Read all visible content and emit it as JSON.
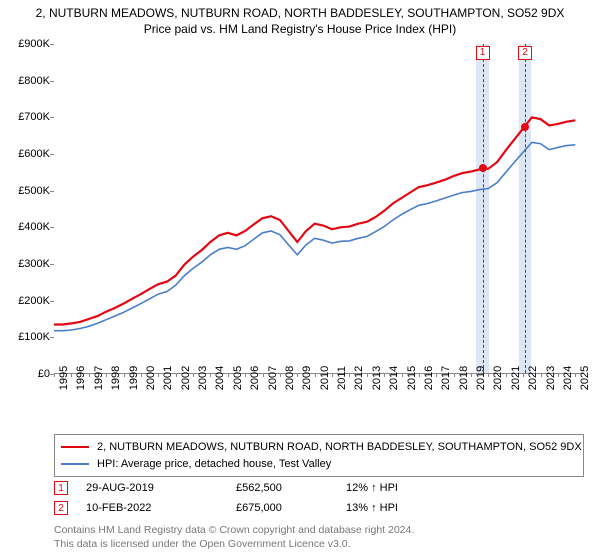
{
  "title": "2, NUTBURN MEADOWS, NUTBURN ROAD, NORTH BADDESLEY, SOUTHAMPTON, SO52 9DX",
  "subtitle": "Price paid vs. HM Land Registry's House Price Index (HPI)",
  "chart": {
    "type": "line",
    "background_color": "#ffffff",
    "ylim": [
      0,
      900000
    ],
    "ytick_step": 100000,
    "ytick_labels": [
      "£0",
      "£100K",
      "£200K",
      "£300K",
      "£400K",
      "£500K",
      "£600K",
      "£700K",
      "£800K",
      "£900K"
    ],
    "xlim": [
      1995,
      2025.5
    ],
    "xticks": [
      1995,
      1996,
      1997,
      1998,
      1999,
      2000,
      2001,
      2002,
      2003,
      2004,
      2005,
      2006,
      2007,
      2008,
      2009,
      2010,
      2011,
      2012,
      2013,
      2014,
      2015,
      2016,
      2017,
      2018,
      2019,
      2020,
      2021,
      2022,
      2023,
      2024,
      2025
    ],
    "title_fontsize": 12,
    "label_fontsize": 11,
    "series": [
      {
        "name": "house_price_series",
        "label": "2, NUTBURN MEADOWS, NUTBURN ROAD, NORTH BADDESLEY, SOUTHAMPTON, SO52 9DX",
        "color": "#e30613",
        "line_width": 2.2,
        "xy": [
          [
            1995.0,
            135000
          ],
          [
            1995.5,
            135000
          ],
          [
            1996.0,
            138000
          ],
          [
            1996.5,
            142000
          ],
          [
            1997.0,
            150000
          ],
          [
            1997.5,
            158000
          ],
          [
            1998.0,
            170000
          ],
          [
            1998.5,
            180000
          ],
          [
            1999.0,
            192000
          ],
          [
            1999.5,
            205000
          ],
          [
            2000.0,
            218000
          ],
          [
            2000.5,
            232000
          ],
          [
            2001.0,
            245000
          ],
          [
            2001.5,
            252000
          ],
          [
            2002.0,
            268000
          ],
          [
            2002.5,
            298000
          ],
          [
            2003.0,
            320000
          ],
          [
            2003.5,
            338000
          ],
          [
            2004.0,
            360000
          ],
          [
            2004.5,
            378000
          ],
          [
            2005.0,
            385000
          ],
          [
            2005.5,
            378000
          ],
          [
            2006.0,
            390000
          ],
          [
            2006.5,
            408000
          ],
          [
            2007.0,
            425000
          ],
          [
            2007.5,
            430000
          ],
          [
            2008.0,
            420000
          ],
          [
            2008.5,
            390000
          ],
          [
            2009.0,
            360000
          ],
          [
            2009.5,
            390000
          ],
          [
            2010.0,
            410000
          ],
          [
            2010.5,
            405000
          ],
          [
            2011.0,
            395000
          ],
          [
            2011.5,
            400000
          ],
          [
            2012.0,
            402000
          ],
          [
            2012.5,
            410000
          ],
          [
            2013.0,
            415000
          ],
          [
            2013.5,
            428000
          ],
          [
            2014.0,
            445000
          ],
          [
            2014.5,
            465000
          ],
          [
            2015.0,
            480000
          ],
          [
            2015.5,
            495000
          ],
          [
            2016.0,
            510000
          ],
          [
            2016.5,
            515000
          ],
          [
            2017.0,
            522000
          ],
          [
            2017.5,
            530000
          ],
          [
            2018.0,
            540000
          ],
          [
            2018.5,
            548000
          ],
          [
            2019.0,
            552000
          ],
          [
            2019.5,
            558000
          ],
          [
            2020.0,
            560000
          ],
          [
            2020.5,
            578000
          ],
          [
            2021.0,
            610000
          ],
          [
            2021.5,
            640000
          ],
          [
            2022.0,
            670000
          ],
          [
            2022.5,
            700000
          ],
          [
            2023.0,
            695000
          ],
          [
            2023.5,
            678000
          ],
          [
            2024.0,
            682000
          ],
          [
            2024.5,
            688000
          ],
          [
            2025.0,
            692000
          ]
        ]
      },
      {
        "name": "hpi_series",
        "label": "HPI: Average price, detached house, Test Valley",
        "color": "#4a7ec8",
        "line_width": 1.6,
        "xy": [
          [
            1995.0,
            118000
          ],
          [
            1995.5,
            118000
          ],
          [
            1996.0,
            120000
          ],
          [
            1996.5,
            124000
          ],
          [
            1997.0,
            130000
          ],
          [
            1997.5,
            138000
          ],
          [
            1998.0,
            148000
          ],
          [
            1998.5,
            158000
          ],
          [
            1999.0,
            168000
          ],
          [
            1999.5,
            180000
          ],
          [
            2000.0,
            192000
          ],
          [
            2000.5,
            205000
          ],
          [
            2001.0,
            218000
          ],
          [
            2001.5,
            225000
          ],
          [
            2002.0,
            242000
          ],
          [
            2002.5,
            268000
          ],
          [
            2003.0,
            288000
          ],
          [
            2003.5,
            305000
          ],
          [
            2004.0,
            325000
          ],
          [
            2004.5,
            340000
          ],
          [
            2005.0,
            345000
          ],
          [
            2005.5,
            340000
          ],
          [
            2006.0,
            350000
          ],
          [
            2006.5,
            368000
          ],
          [
            2007.0,
            385000
          ],
          [
            2007.5,
            390000
          ],
          [
            2008.0,
            380000
          ],
          [
            2008.5,
            352000
          ],
          [
            2009.0,
            325000
          ],
          [
            2009.5,
            352000
          ],
          [
            2010.0,
            370000
          ],
          [
            2010.5,
            365000
          ],
          [
            2011.0,
            357000
          ],
          [
            2011.5,
            362000
          ],
          [
            2012.0,
            363000
          ],
          [
            2012.5,
            370000
          ],
          [
            2013.0,
            375000
          ],
          [
            2013.5,
            388000
          ],
          [
            2014.0,
            402000
          ],
          [
            2014.5,
            420000
          ],
          [
            2015.0,
            435000
          ],
          [
            2015.5,
            448000
          ],
          [
            2016.0,
            460000
          ],
          [
            2016.5,
            465000
          ],
          [
            2017.0,
            472000
          ],
          [
            2017.5,
            480000
          ],
          [
            2018.0,
            488000
          ],
          [
            2018.5,
            495000
          ],
          [
            2019.0,
            498000
          ],
          [
            2019.5,
            503000
          ],
          [
            2020.0,
            506000
          ],
          [
            2020.5,
            522000
          ],
          [
            2021.0,
            550000
          ],
          [
            2021.5,
            578000
          ],
          [
            2022.0,
            605000
          ],
          [
            2022.5,
            632000
          ],
          [
            2023.0,
            628000
          ],
          [
            2023.5,
            612000
          ],
          [
            2024.0,
            618000
          ],
          [
            2024.5,
            623000
          ],
          [
            2025.0,
            625000
          ]
        ]
      }
    ],
    "sale_points": [
      {
        "n": "1",
        "x": 2019.66,
        "y": 562500,
        "color": "#e30613",
        "shade_color": "#dce6f5"
      },
      {
        "n": "2",
        "x": 2022.11,
        "y": 675000,
        "color": "#e30613",
        "shade_color": "#dce6f5"
      }
    ],
    "sale_point_shade_width_years": 0.7,
    "sale_point_marker_top_offset": 0.005
  },
  "legend": {
    "items": [
      {
        "color": "#e30613",
        "width": 2.2,
        "label_ref": "chart.series.0.label"
      },
      {
        "color": "#4a7ec8",
        "width": 1.6,
        "label_ref": "chart.series.1.label"
      }
    ]
  },
  "annotations": [
    {
      "n": "1",
      "color": "#e30613",
      "date": "29-AUG-2019",
      "price": "£562,500",
      "delta": "12% ↑ HPI"
    },
    {
      "n": "2",
      "color": "#e30613",
      "date": "10-FEB-2022",
      "price": "£675,000",
      "delta": "13% ↑ HPI"
    }
  ],
  "credits_line1": "Contains HM Land Registry data © Crown copyright and database right 2024.",
  "credits_line2": "This data is licensed under the Open Government Licence v3.0."
}
